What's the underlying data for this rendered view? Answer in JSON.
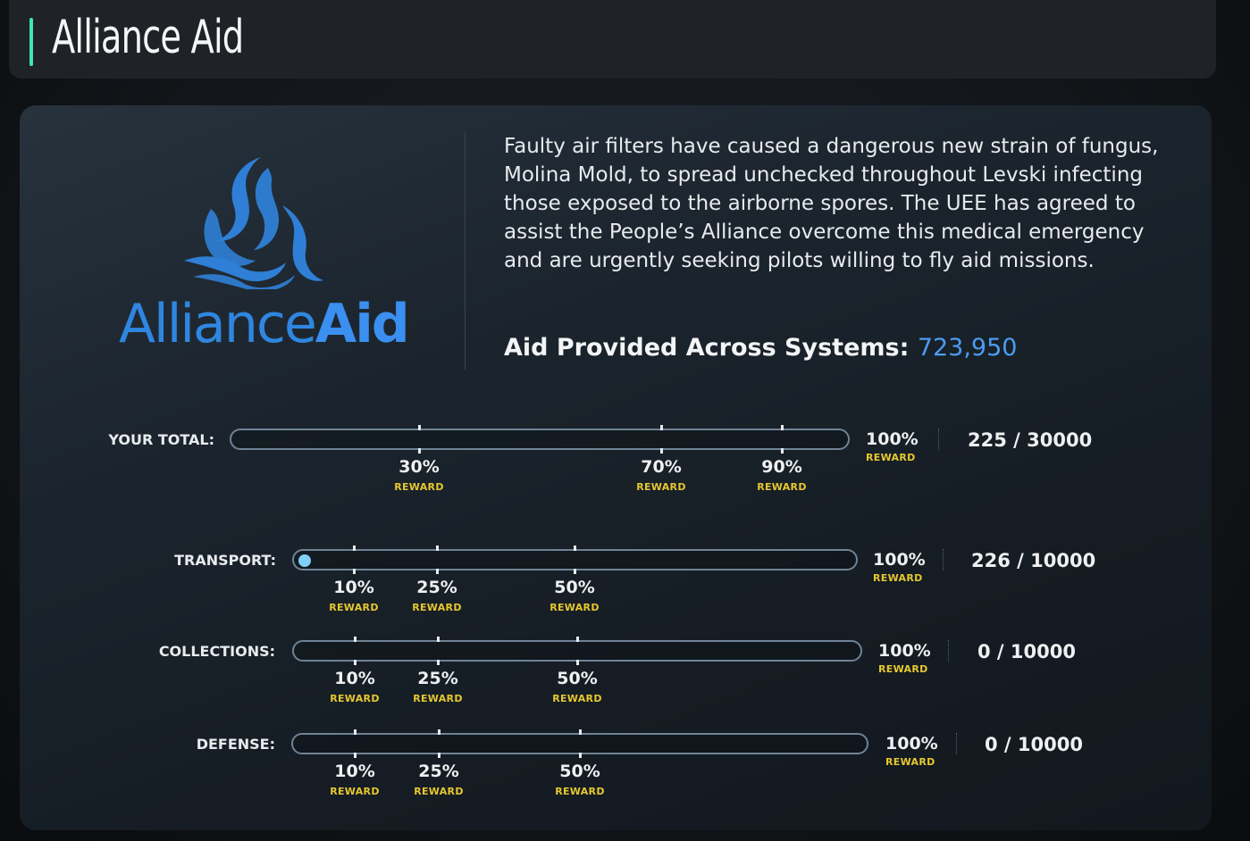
{
  "header": {
    "title": "Alliance Aid"
  },
  "logo": {
    "text_light": "Alliance",
    "text_bold": "Aid",
    "icon": "alliance-aid-logo-icon",
    "color": "#2f86e0"
  },
  "description": "Faulty air filters have caused a dangerous new strain of fungus, Molina Mold, to spread unchecked throughout Levski infecting those exposed to the airborne spores. The UEE has agreed to assist the People’s Alliance overcome this medical emergency and are urgently seeking pilots willing to fly aid missions.",
  "aid_provided": {
    "label": "Aid Provided Across Systems:",
    "value": "723,950"
  },
  "reward_word": "REWARD",
  "rows": {
    "your_total": {
      "label": "YOUR TOTAL:",
      "progress": 0.0075,
      "milestones": [
        {
          "pct": "30%",
          "reward": "REWARD"
        },
        {
          "pct": "70%",
          "reward": "REWARD"
        },
        {
          "pct": "90%",
          "reward": "REWARD"
        }
      ],
      "end": {
        "pct": "100%",
        "reward": "REWARD"
      },
      "count": "225 / 30000"
    },
    "transport": {
      "label": "TRANSPORT:",
      "progress": 0.0226,
      "milestones": [
        {
          "pct": "10%",
          "reward": "REWARD"
        },
        {
          "pct": "25%",
          "reward": "REWARD"
        },
        {
          "pct": "50%",
          "reward": "REWARD"
        }
      ],
      "end": {
        "pct": "100%",
        "reward": "REWARD"
      },
      "count": "226 / 10000"
    },
    "collections": {
      "label": "COLLECTIONS:",
      "progress": 0,
      "milestones": [
        {
          "pct": "10%",
          "reward": "REWARD"
        },
        {
          "pct": "25%",
          "reward": "REWARD"
        },
        {
          "pct": "50%",
          "reward": "REWARD"
        }
      ],
      "end": {
        "pct": "100%",
        "reward": "REWARD"
      },
      "count": "0 / 10000"
    },
    "defense": {
      "label": "DEFENSE:",
      "progress": 0,
      "milestones": [
        {
          "pct": "10%",
          "reward": "REWARD"
        },
        {
          "pct": "25%",
          "reward": "REWARD"
        },
        {
          "pct": "50%",
          "reward": "REWARD"
        }
      ],
      "end": {
        "pct": "100%",
        "reward": "REWARD"
      },
      "count": "0 / 10000"
    }
  },
  "colors": {
    "accent": "#3ee6b0",
    "reward": "#e6c72f",
    "highlight": "#4c9cf2",
    "progress_dot": "#7fd0f5"
  }
}
